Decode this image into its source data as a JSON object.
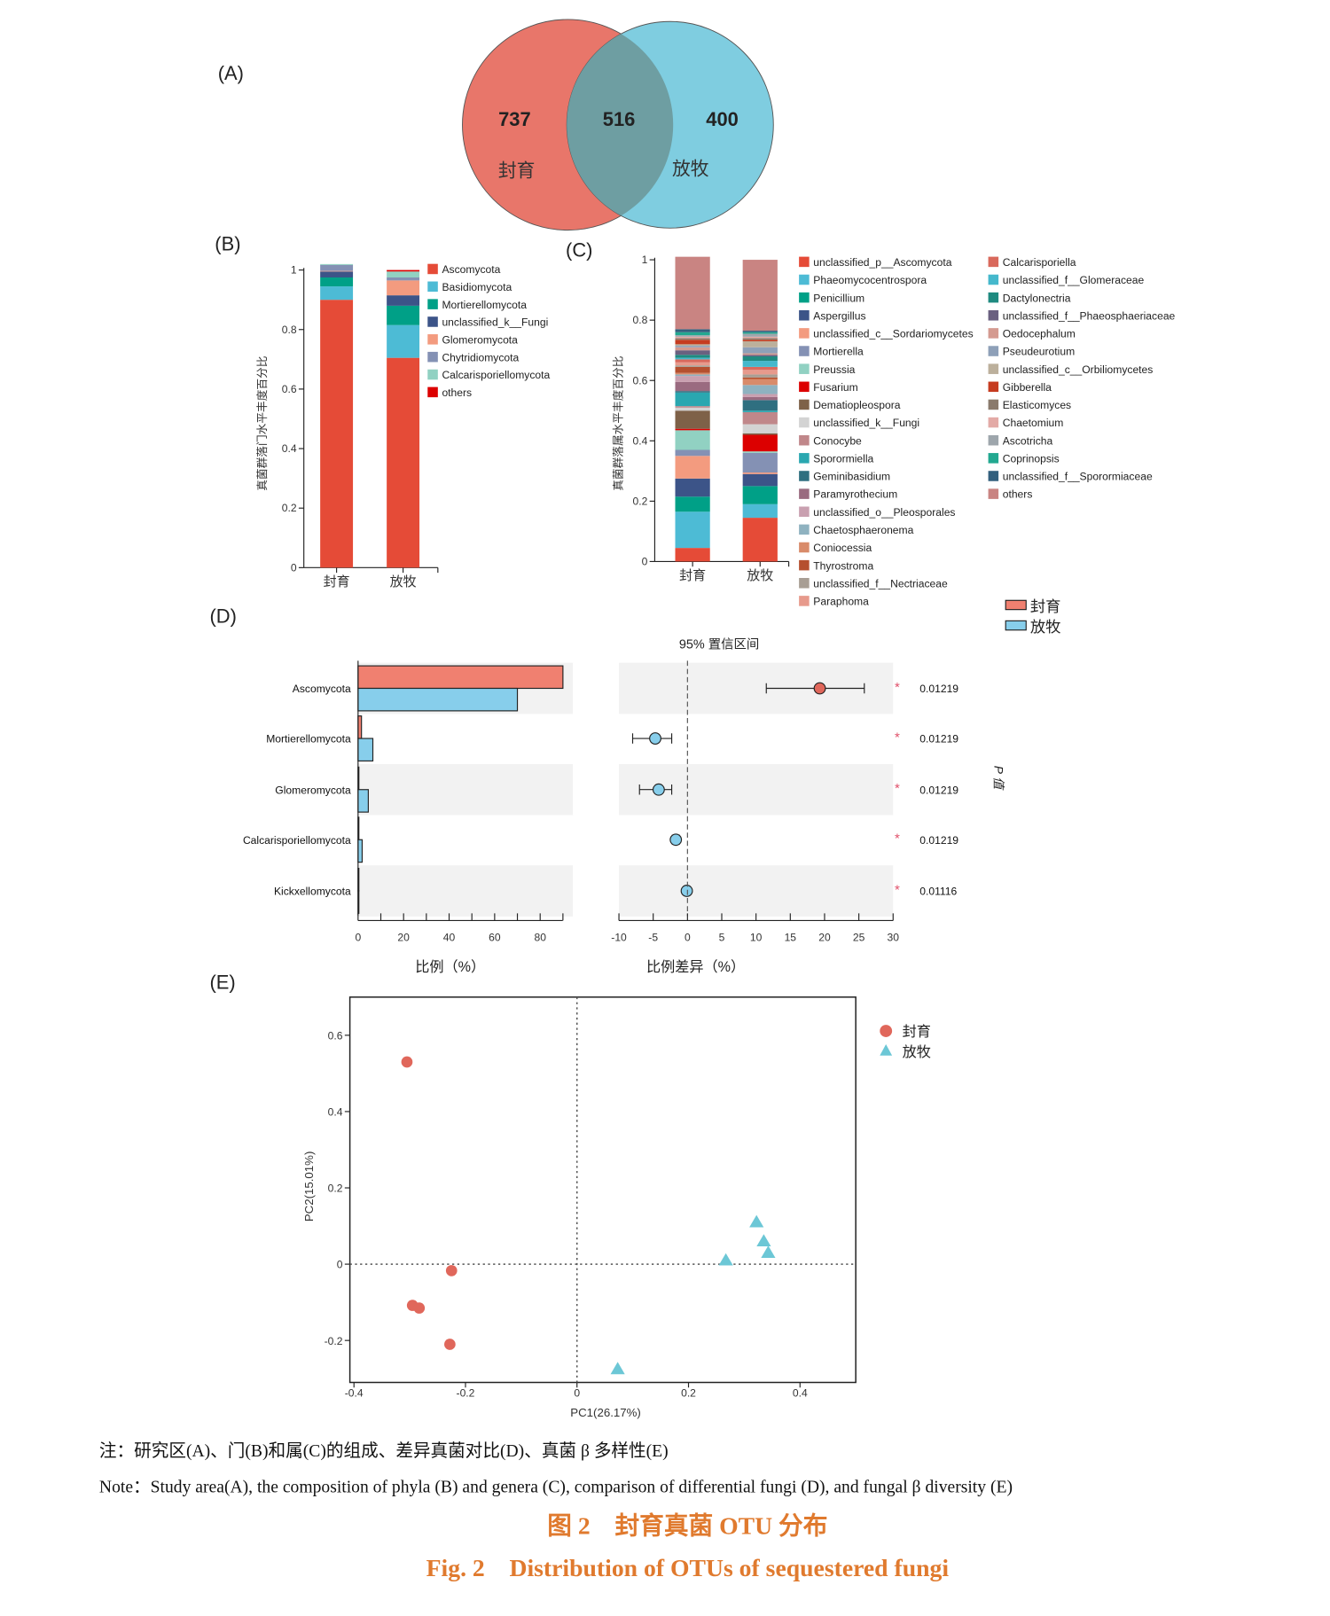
{
  "panels": {
    "A": "(A)",
    "B": "(B)",
    "C": "(C)",
    "D": "(D)",
    "E": "(E)"
  },
  "groups": [
    "封育",
    "放牧"
  ],
  "colors": {
    "fengyu": "#e8766a",
    "fangmu": "#7fcde0",
    "overlap": "#6e9ea2",
    "red_marker": "#e0675b",
    "blue_marker": "#6cc7d6"
  },
  "chart_data": [
    {
      "id": "A",
      "type": "venn",
      "sets": [
        {
          "name": "封育",
          "unique": 737
        },
        {
          "name": "放牧",
          "unique": 400
        }
      ],
      "shared": 516,
      "labels": {
        "left": "737",
        "shared": "516",
        "right": "400"
      }
    },
    {
      "id": "B",
      "type": "bar",
      "stacked": true,
      "ylabel": "真菌群落门水平丰度百分比",
      "ylim": [
        0,
        1
      ],
      "yticks": [
        "0",
        "0.2",
        "0.4",
        "0.6",
        "0.8",
        "1"
      ],
      "categories": [
        "封育",
        "放牧"
      ],
      "series": [
        {
          "name": "Ascomycota",
          "color": "#e54b37",
          "values": [
            0.9,
            0.705
          ]
        },
        {
          "name": "Basidiomycota",
          "color": "#4dbbd5",
          "values": [
            0.045,
            0.11
          ]
        },
        {
          "name": "Mortierellomycota",
          "color": "#00a087",
          "values": [
            0.03,
            0.065
          ]
        },
        {
          "name": "unclassified_k__Fungi",
          "color": "#3c5488",
          "values": [
            0.02,
            0.035
          ]
        },
        {
          "name": "Glomeromycota",
          "color": "#f39b7f",
          "values": [
            0.002,
            0.05
          ]
        },
        {
          "name": "Chytridiomycota",
          "color": "#8491b4",
          "values": [
            0.02,
            0.01
          ]
        },
        {
          "name": "Calcarisporiellomycota",
          "color": "#91d1c2",
          "values": [
            0.003,
            0.02
          ]
        },
        {
          "name": "others",
          "color": "#dc0000",
          "values": [
            0.0,
            0.005
          ]
        }
      ]
    },
    {
      "id": "C",
      "type": "bar",
      "stacked": true,
      "ylabel": "真菌群落属水平丰度百分比",
      "ylim": [
        0,
        1
      ],
      "yticks": [
        "0",
        "0.2",
        "0.4",
        "0.6",
        "0.8",
        "1"
      ],
      "categories": [
        "封育",
        "放牧"
      ],
      "series": [
        {
          "name": "unclassified_p__Ascomycota",
          "color": "#e54b37",
          "values": [
            0.045,
            0.145
          ]
        },
        {
          "name": "Phaeomycocentrospora",
          "color": "#4dbbd5",
          "values": [
            0.12,
            0.045
          ]
        },
        {
          "name": "Penicillium",
          "color": "#00a087",
          "values": [
            0.05,
            0.06
          ]
        },
        {
          "name": "Aspergillus",
          "color": "#3c5488",
          "values": [
            0.06,
            0.04
          ]
        },
        {
          "name": "unclassified_c__Sordariomycetes",
          "color": "#f39b7f",
          "values": [
            0.075,
            0.005
          ]
        },
        {
          "name": "Mortierella",
          "color": "#8491b4",
          "values": [
            0.02,
            0.065
          ]
        },
        {
          "name": "Preussia",
          "color": "#91d1c2",
          "values": [
            0.065,
            0.005
          ]
        },
        {
          "name": "Fusarium",
          "color": "#dc0000",
          "values": [
            0.005,
            0.055
          ]
        },
        {
          "name": "Dematiopleospora",
          "color": "#7e6148",
          "values": [
            0.06,
            0.005
          ]
        },
        {
          "name": "unclassified_k__Fungi",
          "color": "#d3d3d3",
          "values": [
            0.01,
            0.03
          ]
        },
        {
          "name": "Conocybe",
          "color": "#c0878a",
          "values": [
            0.005,
            0.04
          ]
        },
        {
          "name": "Sporormiella",
          "color": "#2aa7b0",
          "values": [
            0.045,
            0.005
          ]
        },
        {
          "name": "Geminibasidium",
          "color": "#2f6f80",
          "values": [
            0.005,
            0.035
          ]
        },
        {
          "name": "Paramyrothecium",
          "color": "#9a6b80",
          "values": [
            0.03,
            0.01
          ]
        },
        {
          "name": "unclassified_o__Pleosporales",
          "color": "#c9a0b0",
          "values": [
            0.02,
            0.01
          ]
        },
        {
          "name": "Chaetosphaeronema",
          "color": "#8fb2c0",
          "values": [
            0.005,
            0.03
          ]
        },
        {
          "name": "Coniocessia",
          "color": "#d98b6a",
          "values": [
            0.005,
            0.02
          ]
        },
        {
          "name": "Thyrostroma",
          "color": "#b5502f",
          "values": [
            0.02,
            0.005
          ]
        },
        {
          "name": "unclassified_f__Nectriaceae",
          "color": "#a89e94",
          "values": [
            0.005,
            0.01
          ]
        },
        {
          "name": "Paraphoma",
          "color": "#e79a8c",
          "values": [
            0.01,
            0.015
          ]
        },
        {
          "name": "Calcarisporiella",
          "color": "#d9695c",
          "values": [
            0.01,
            0.01
          ]
        },
        {
          "name": "unclassified_f__Glomeraceae",
          "color": "#45b8cc",
          "values": [
            0.005,
            0.02
          ]
        },
        {
          "name": "Dactylonectria",
          "color": "#1f8a80",
          "values": [
            0.01,
            0.015
          ]
        },
        {
          "name": "unclassified_f__Phaeosphaeriaceae",
          "color": "#6a6080",
          "values": [
            0.015,
            0.005
          ]
        },
        {
          "name": "Oedocephalum",
          "color": "#d49a90",
          "values": [
            0.01,
            0.005
          ]
        },
        {
          "name": "Pseudeurotium",
          "color": "#8ea0b8",
          "values": [
            0.005,
            0.02
          ]
        },
        {
          "name": "unclassified_c__Orbiliomycetes",
          "color": "#bcb09c",
          "values": [
            0.005,
            0.02
          ]
        },
        {
          "name": "Gibberella",
          "color": "#c63c20",
          "values": [
            0.015,
            0.005
          ]
        },
        {
          "name": "Elasticomyces",
          "color": "#8a7a6c",
          "values": [
            0.005,
            0.005
          ]
        },
        {
          "name": "Chaetomium",
          "color": "#e3aaa6",
          "values": [
            0.005,
            0.005
          ]
        },
        {
          "name": "Ascotricha",
          "color": "#9ea6ac",
          "values": [
            0.005,
            0.01
          ]
        },
        {
          "name": "Coprinopsis",
          "color": "#22a890",
          "values": [
            0.01,
            0.005
          ]
        },
        {
          "name": "unclassified_f__Sporormiaceae",
          "color": "#33607e",
          "values": [
            0.01,
            0.005
          ]
        },
        {
          "name": "others",
          "color": "#c98482",
          "values": [
            0.24,
            0.235
          ]
        }
      ]
    },
    {
      "id": "D",
      "type": "bar",
      "orientation": "horizontal",
      "categories": [
        "Ascomycota",
        "Mortierellomycota",
        "Glomeromycota",
        "Calcarisporiellomycota",
        "Kickxellomycota"
      ],
      "left": {
        "xlabel": "比例（%）",
        "xlim": [
          0,
          90
        ],
        "xticks": [
          "0",
          "20",
          "40",
          "60",
          "80"
        ],
        "series": [
          {
            "name": "封育",
            "color": "#f08070",
            "values": [
              90,
              1.5,
              0.3,
              0.2,
              0.1
            ]
          },
          {
            "name": "放牧",
            "color": "#87ceeb",
            "values": [
              70,
              6.5,
              4.5,
              1.8,
              0.2
            ]
          }
        ]
      },
      "right": {
        "title": "95% 置信区间",
        "xlabel": "比例差异（%）",
        "xlim": [
          -10,
          30
        ],
        "xticks": [
          "-10",
          "-5",
          "0",
          "5",
          "10",
          "15",
          "20",
          "25",
          "30"
        ],
        "diff": [
          19.3,
          -4.7,
          -4.2,
          -1.7,
          -0.1
        ],
        "ci_low": [
          11.5,
          -8.0,
          -7.0,
          -2.2,
          -0.3
        ],
        "ci_high": [
          25.8,
          -2.3,
          -2.3,
          -1.2,
          0.1
        ],
        "significance": [
          "*",
          "*",
          "*",
          "*",
          "*"
        ],
        "p_values": [
          "0.01219",
          "0.01219",
          "0.01219",
          "0.01219",
          "0.01116"
        ],
        "p_label": "P 值"
      },
      "legend": [
        "封育",
        "放牧"
      ]
    },
    {
      "id": "E",
      "type": "scatter",
      "xlabel": "PC1(26.17%)",
      "ylabel": "PC2(15.01%)",
      "xlim": [
        -0.4,
        0.5
      ],
      "ylim": [
        -0.3,
        0.7
      ],
      "xticks": [
        "-0.4",
        "-0.2",
        "0",
        "0.2",
        "0.4"
      ],
      "yticks": [
        "-0.2",
        "0",
        "0.2",
        "0.4",
        "0.6"
      ],
      "series": [
        {
          "name": "封育",
          "marker": "circle",
          "color": "#e0675b",
          "x": [
            -0.305,
            -0.225,
            -0.295,
            -0.283,
            -0.228
          ],
          "y": [
            0.53,
            -0.017,
            -0.108,
            -0.115,
            -0.21
          ]
        },
        {
          "name": "放牧",
          "marker": "triangle",
          "color": "#6cc7d6",
          "x": [
            0.322,
            0.335,
            0.343,
            0.267,
            0.073
          ],
          "y": [
            0.11,
            0.06,
            0.03,
            0.01,
            -0.275
          ]
        }
      ]
    }
  ],
  "caption": {
    "note_cn": "注：研究区(A)、门(B)和属(C)的组成、差异真菌对比(D)、真菌 β 多样性(E)",
    "note_en": "Note：Study area(A), the composition of phyla (B) and genera (C), comparison of differential fungi (D), and fungal β diversity (E)",
    "title_cn": "图 2    封育真菌 OTU 分布",
    "title_en": "Fig. 2    Distribution of OTUs of sequestered fungi"
  }
}
